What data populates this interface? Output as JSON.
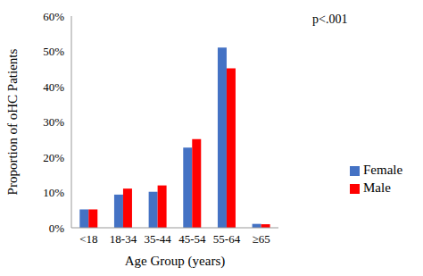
{
  "chart_data": {
    "type": "bar",
    "annotation": "p<.001",
    "x_label": "Age Group (years)",
    "y_label": "Proportion of oHC Patients",
    "categories": [
      "<18",
      "18-34",
      "35-44",
      "45-54",
      "55-64",
      "≥65"
    ],
    "series": [
      {
        "name": "Female",
        "color": "#4472c4",
        "values": [
          5.2,
          9.4,
          10.2,
          22.7,
          51.1,
          1.1
        ]
      },
      {
        "name": "Male",
        "color": "#ff0000",
        "values": [
          5.2,
          11.1,
          12.0,
          25.1,
          45.2,
          1.0
        ]
      }
    ],
    "ylim": [
      0,
      60
    ],
    "yticks": [
      {
        "value": 0,
        "label": "0%"
      },
      {
        "value": 10,
        "label": "10%"
      },
      {
        "value": 20,
        "label": "20%"
      },
      {
        "value": 30,
        "label": "30%"
      },
      {
        "value": 40,
        "label": "40%"
      },
      {
        "value": 50,
        "label": "50%"
      },
      {
        "value": 60,
        "label": "60%"
      }
    ],
    "grid": false,
    "legend": "right"
  }
}
